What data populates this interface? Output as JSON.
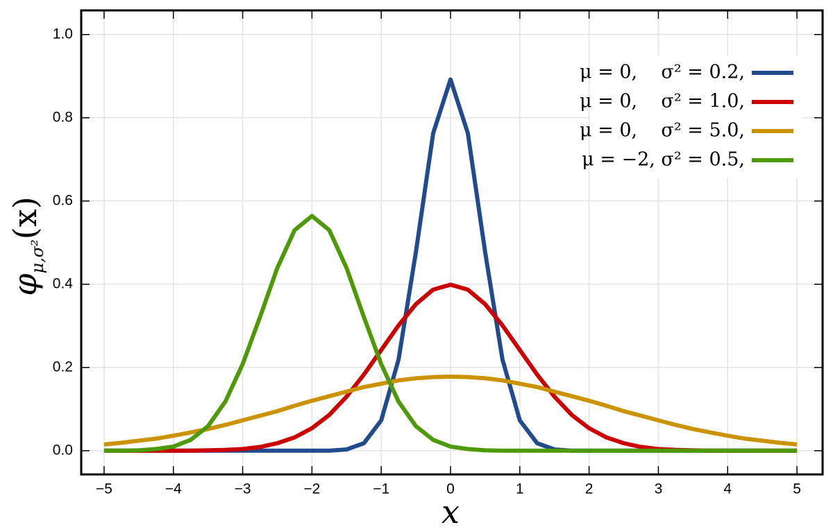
{
  "chart_data": {
    "type": "line",
    "x_label": "x",
    "y_label": {
      "symbol": "φ",
      "subscript": "μ,σ²",
      "argument": "(x)"
    },
    "x": [
      -5,
      -4.75,
      -4.5,
      -4.25,
      -4,
      -3.75,
      -3.5,
      -3.25,
      -3,
      -2.75,
      -2.5,
      -2.25,
      -2,
      -1.75,
      -1.5,
      -1.25,
      -1,
      -0.75,
      -0.5,
      -0.25,
      0,
      0.25,
      0.5,
      0.75,
      1,
      1.25,
      1.5,
      1.75,
      2,
      2.25,
      2.5,
      2.75,
      3,
      3.25,
      3.5,
      3.75,
      4,
      4.25,
      4.5,
      4.75,
      5
    ],
    "series": [
      {
        "name": "μ = 0,    σ² = 0.2,",
        "color": "#214b8c",
        "values": [
          0,
          0,
          0,
          0,
          0,
          0,
          0,
          0,
          0,
          0,
          0,
          0,
          0,
          0,
          0.003,
          0.018,
          0.073,
          0.219,
          0.477,
          0.763,
          0.892,
          0.763,
          0.477,
          0.219,
          0.073,
          0.018,
          0.003,
          0,
          0,
          0,
          0,
          0,
          0,
          0,
          0,
          0,
          0,
          0,
          0,
          0,
          0
        ]
      },
      {
        "name": "μ = 0,    σ² = 1.0,",
        "color": "#cc0000",
        "values": [
          0,
          0,
          0,
          0,
          0,
          0,
          0.001,
          0.002,
          0.004,
          0.009,
          0.018,
          0.032,
          0.054,
          0.086,
          0.13,
          0.183,
          0.242,
          0.301,
          0.352,
          0.387,
          0.399,
          0.387,
          0.352,
          0.301,
          0.242,
          0.183,
          0.13,
          0.086,
          0.054,
          0.032,
          0.018,
          0.009,
          0.004,
          0.002,
          0.001,
          0,
          0,
          0,
          0,
          0,
          0
        ]
      },
      {
        "name": "μ = 0,    σ² = 5.0,",
        "color": "#cc9300",
        "values": [
          0.015,
          0.019,
          0.024,
          0.029,
          0.036,
          0.044,
          0.052,
          0.062,
          0.073,
          0.084,
          0.095,
          0.108,
          0.12,
          0.131,
          0.142,
          0.153,
          0.161,
          0.169,
          0.174,
          0.177,
          0.178,
          0.177,
          0.174,
          0.169,
          0.161,
          0.153,
          0.142,
          0.131,
          0.12,
          0.108,
          0.095,
          0.084,
          0.073,
          0.062,
          0.052,
          0.044,
          0.036,
          0.029,
          0.024,
          0.019,
          0.015
        ]
      },
      {
        "name": "μ = −2, σ² = 0.5,",
        "color": "#4e9a06",
        "values": [
          0,
          0,
          0.001,
          0.004,
          0.01,
          0.026,
          0.059,
          0.118,
          0.208,
          0.321,
          0.439,
          0.53,
          0.564,
          0.53,
          0.439,
          0.321,
          0.208,
          0.118,
          0.059,
          0.026,
          0.01,
          0.004,
          0.001,
          0,
          0,
          0,
          0,
          0,
          0,
          0,
          0,
          0,
          0,
          0,
          0,
          0,
          0,
          0,
          0,
          0,
          0
        ]
      }
    ],
    "xlim": [
      -5.33,
      5.37
    ],
    "ylim": [
      -0.057,
      1.058
    ],
    "xticks": [
      {
        "value": -5,
        "label": "−5"
      },
      {
        "value": -4,
        "label": "−4"
      },
      {
        "value": -3,
        "label": "−3"
      },
      {
        "value": -2,
        "label": "−2"
      },
      {
        "value": -1,
        "label": "−1"
      },
      0,
      1,
      2,
      3,
      4,
      5
    ],
    "yticks": [
      {
        "value": 0,
        "label": "0.0"
      },
      0.2,
      0.4,
      0.6,
      0.8,
      {
        "value": 1,
        "label": "1.0"
      }
    ],
    "grid": true,
    "legend": "upper right"
  }
}
